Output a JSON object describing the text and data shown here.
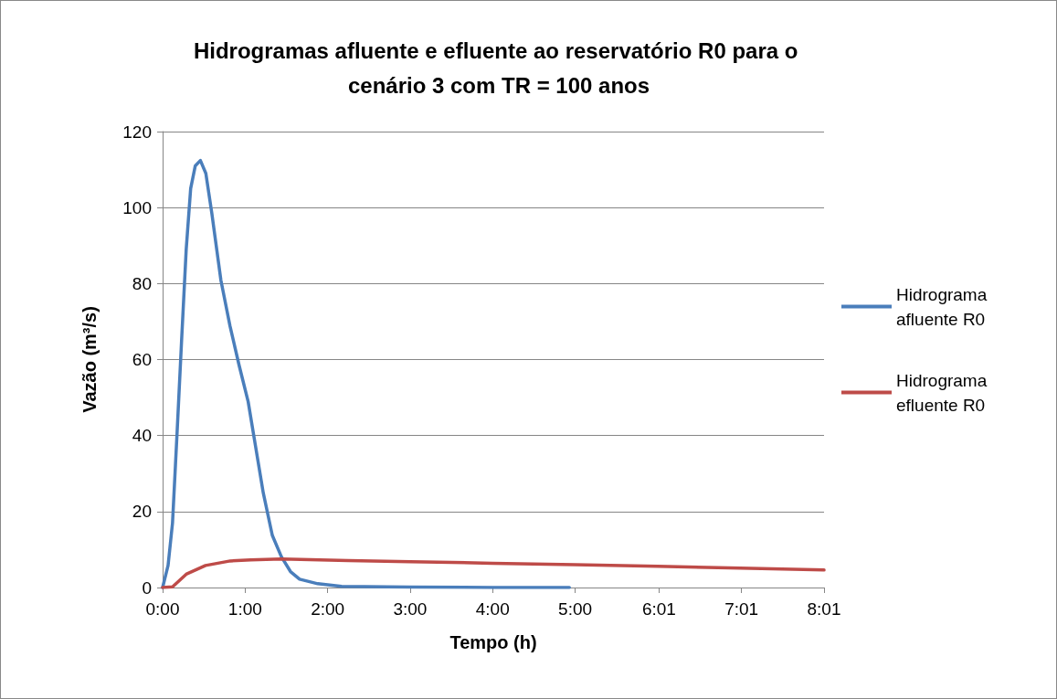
{
  "chart_data": {
    "type": "line",
    "title": "Hidrogramas afluente e efluente ao reservatório R0 para o cenário 3 com TR = 100 anos",
    "xlabel": "Tempo (h)",
    "ylabel": "Vazão (m³/s)",
    "xlim": [
      0,
      8.0167
    ],
    "xticks": [
      {
        "value": 0,
        "label": "0:00"
      },
      {
        "value": 1,
        "label": "1:00"
      },
      {
        "value": 2,
        "label": "2:00"
      },
      {
        "value": 3,
        "label": "3:00"
      },
      {
        "value": 4,
        "label": "4:00"
      },
      {
        "value": 5,
        "label": "5:00"
      },
      {
        "value": 6.0167,
        "label": "6:01"
      },
      {
        "value": 7.0167,
        "label": "7:01"
      },
      {
        "value": 8.0167,
        "label": "8:01"
      }
    ],
    "ylim": [
      0,
      120
    ],
    "yticks": [
      0,
      20,
      40,
      60,
      80,
      100,
      120
    ],
    "grid": "y",
    "legend": "right",
    "marker": "none",
    "line_style": "solid",
    "series": [
      {
        "name": "Hidrograma afluente R0",
        "color": "#4a7ebb",
        "x": [
          0,
          0.066,
          0.12,
          0.176,
          0.23,
          0.286,
          0.34,
          0.396,
          0.458,
          0.524,
          0.597,
          0.707,
          0.817,
          0.927,
          1.037,
          1.11,
          1.22,
          1.33,
          1.44,
          1.55,
          1.66,
          1.88,
          2.17,
          3,
          4,
          4.93
        ],
        "values": [
          0,
          5.8,
          17,
          41,
          65,
          89,
          105,
          111,
          112.4,
          109,
          98.4,
          80.8,
          68.8,
          58.5,
          48.9,
          39.3,
          24.9,
          13.7,
          8.1,
          4.2,
          2.2,
          1,
          0.3,
          0.1,
          0,
          0
        ]
      },
      {
        "name": "Hidrograma efluente R0",
        "color": "#be4b48",
        "x": [
          0,
          0.12,
          0.286,
          0.52,
          0.82,
          1.07,
          1.44,
          2.25,
          3,
          4,
          5,
          6,
          7,
          8.0167
        ],
        "values": [
          0,
          0.2,
          3.5,
          5.8,
          7,
          7.3,
          7.5,
          7.1,
          6.8,
          6.4,
          6,
          5.6,
          5.1,
          4.6
        ]
      }
    ]
  }
}
